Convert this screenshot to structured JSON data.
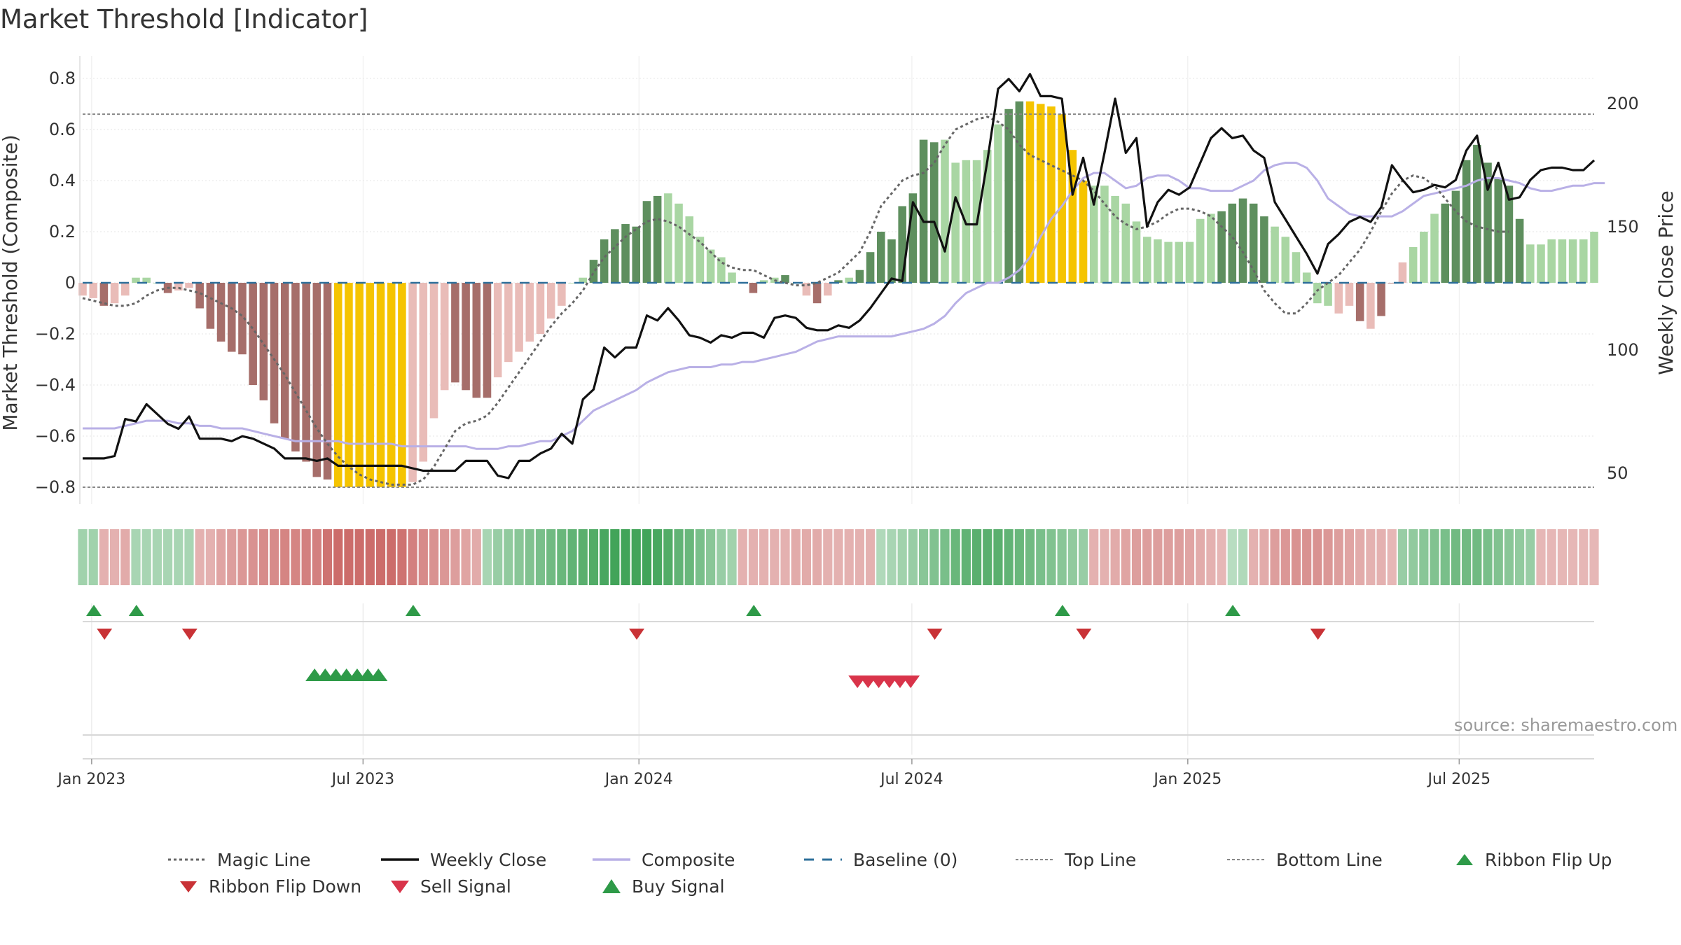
{
  "title": "Market Threshold [Indicator]",
  "source": "source: sharemaestro.com",
  "colors": {
    "weekly_close": "#111111",
    "composite": "#b9b0e6",
    "magic_line": "#666666",
    "baseline": "#2d6f9a",
    "threshold_lines": "#888888",
    "bar_strong_pos": "#5e8f5e",
    "bar_weak_pos": "#a9d6a3",
    "bar_strong_neg": "#a66e6a",
    "bar_weak_neg": "#e9bcb8",
    "bar_extreme": "#f5c400",
    "buy_marker": "#2e9a48",
    "sell_marker": "#d9344a",
    "flip_up": "#2e9a48",
    "flip_down": "#c93236"
  },
  "chart_data": {
    "type": "bar+line",
    "left_axis": {
      "label": "Market Threshold (Composite)",
      "ylim": [
        -0.88,
        0.88
      ],
      "ticks": [
        -0.8,
        -0.6,
        -0.4,
        -0.2,
        0,
        0.2,
        0.4,
        0.6,
        0.8
      ],
      "tick_labels": [
        "−0.8",
        "−0.6",
        "−0.4",
        "−0.2",
        "0",
        "0.2",
        "0.4",
        "0.6",
        "0.8"
      ]
    },
    "right_axis": {
      "label": "Weekly Close Price",
      "ticks": [
        50,
        100,
        150,
        200
      ],
      "tick_labels": [
        "50",
        "100",
        "150",
        "200"
      ]
    },
    "x_axis": {
      "start": "2022-12-26",
      "end": "2025-09-29",
      "ticks": [
        "2023-01-01",
        "2023-07-01",
        "2024-01-01",
        "2024-07-01",
        "2025-01-01",
        "2025-07-01"
      ],
      "tick_labels": [
        "Jan 2023",
        "Jul 2023",
        "Jan 2024",
        "Jul 2024",
        "Jan 2025",
        "Jul 2025"
      ]
    },
    "top_line": 0.66,
    "bottom_line": -0.8,
    "composite_bars": [
      -0.05,
      -0.06,
      -0.09,
      -0.08,
      -0.05,
      0.02,
      0.02,
      0.0,
      -0.04,
      -0.03,
      -0.02,
      -0.1,
      -0.18,
      -0.23,
      -0.27,
      -0.28,
      -0.4,
      -0.46,
      -0.55,
      -0.61,
      -0.66,
      -0.7,
      -0.76,
      -0.77,
      -0.8,
      -0.8,
      -0.8,
      -0.8,
      -0.8,
      -0.8,
      -0.8,
      -0.78,
      -0.7,
      -0.53,
      -0.42,
      -0.39,
      -0.42,
      -0.45,
      -0.45,
      -0.37,
      -0.31,
      -0.27,
      -0.23,
      -0.2,
      -0.14,
      -0.09,
      0.0,
      0.02,
      0.09,
      0.17,
      0.21,
      0.23,
      0.22,
      0.32,
      0.34,
      0.35,
      0.31,
      0.26,
      0.18,
      0.13,
      0.1,
      0.04,
      0.0,
      -0.04,
      0.01,
      0.02,
      0.03,
      0.0,
      -0.05,
      -0.08,
      -0.05,
      0.01,
      0.02,
      0.05,
      0.12,
      0.2,
      0.17,
      0.3,
      0.35,
      0.56,
      0.55,
      0.56,
      0.47,
      0.48,
      0.48,
      0.52,
      0.62,
      0.68,
      0.71,
      0.71,
      0.7,
      0.69,
      0.66,
      0.52,
      0.4,
      0.38,
      0.38,
      0.34,
      0.31,
      0.24,
      0.18,
      0.17,
      0.16,
      0.16,
      0.16,
      0.25,
      0.27,
      0.28,
      0.31,
      0.33,
      0.31,
      0.26,
      0.22,
      0.18,
      0.12,
      0.04,
      -0.08,
      -0.09,
      -0.12,
      -0.09,
      -0.15,
      -0.18,
      -0.13,
      0.0,
      0.08,
      0.14,
      0.2,
      0.27,
      0.31,
      0.36,
      0.48,
      0.54,
      0.47,
      0.41,
      0.38,
      0.25,
      0.15,
      0.15,
      0.17,
      0.17,
      0.17,
      0.17,
      0.2
    ],
    "bar_style": [
      "wn",
      "wn",
      "sn",
      "wn",
      "wn",
      "wp",
      "wp",
      "wp",
      "sn",
      "wn",
      "wn",
      "sn",
      "sn",
      "sn",
      "sn",
      "sn",
      "sn",
      "sn",
      "sn",
      "sn",
      "sn",
      "sn",
      "sn",
      "sn",
      "x",
      "x",
      "x",
      "x",
      "x",
      "x",
      "x",
      "wn",
      "wn",
      "wn",
      "wn",
      "sn",
      "sn",
      "sn",
      "sn",
      "wn",
      "wn",
      "wn",
      "wn",
      "wn",
      "wn",
      "wn",
      "wp",
      "wp",
      "sp",
      "sp",
      "sp",
      "sp",
      "sp",
      "sp",
      "sp",
      "wp",
      "wp",
      "wp",
      "wp",
      "wp",
      "wp",
      "wp",
      "wp",
      "sn",
      "wp",
      "wp",
      "sp",
      "wp",
      "wn",
      "sn",
      "wn",
      "sp",
      "wp",
      "sp",
      "sp",
      "sp",
      "sp",
      "sp",
      "sp",
      "sp",
      "sp",
      "wp",
      "wp",
      "wp",
      "wp",
      "wp",
      "wp",
      "sp",
      "sp",
      "x",
      "x",
      "x",
      "x",
      "x",
      "x",
      "wp",
      "wp",
      "wp",
      "wp",
      "wp",
      "wp",
      "wp",
      "wp",
      "wp",
      "wp",
      "wp",
      "wp",
      "sp",
      "sp",
      "sp",
      "sp",
      "sp",
      "wp",
      "wp",
      "wp",
      "wp",
      "wp",
      "wp",
      "wn",
      "wn",
      "sn",
      "wn",
      "sn",
      "sn",
      "wn",
      "wp",
      "wp",
      "wp",
      "sp",
      "sp",
      "sp",
      "sp",
      "sp",
      "sp",
      "sp",
      "sp",
      "wp",
      "wp",
      "wp",
      "wp",
      "wp",
      "wp",
      "wp",
      "wp",
      "sp"
    ],
    "weekly_close": [
      56.0,
      56.0,
      56.0,
      57.0,
      72.0,
      71.0,
      78.0,
      74.0,
      70.0,
      68.0,
      73.0,
      64.0,
      64.0,
      64.0,
      63.0,
      65.0,
      64.0,
      62.0,
      60.0,
      56.0,
      56.0,
      56.0,
      55.0,
      56.0,
      53.0,
      53.0,
      53.0,
      53.0,
      53.0,
      53.0,
      53.0,
      52.0,
      51.0,
      51.0,
      51.0,
      51.0,
      55.0,
      55.0,
      55.0,
      49.0,
      48.0,
      55.0,
      55.0,
      58.0,
      60.0,
      66.0,
      62.0,
      80.0,
      84.0,
      101.0,
      97.0,
      101.0,
      101.0,
      114.0,
      112.0,
      117.0,
      112.0,
      106.0,
      105.0,
      103.0,
      106.0,
      105.0,
      107.0,
      107.0,
      105.0,
      113.0,
      114.0,
      113.0,
      109.0,
      108.0,
      108.0,
      110.0,
      109.0,
      112.0,
      117.0,
      123.0,
      129.0,
      128.0,
      160.0,
      152.0,
      152.0,
      140.0,
      162.0,
      151.0,
      151.0,
      177.0,
      206.0,
      210.0,
      205.0,
      212.0,
      203.0,
      203.0,
      202.0,
      163.0,
      178.0,
      159.0,
      180.0,
      202.0,
      180.0,
      186.0,
      150.0,
      160.0,
      165.0,
      163.0,
      166.0,
      176.0,
      186.0,
      190.0,
      186.0,
      187.0,
      181.0,
      178.0,
      160.0,
      153.0,
      146.0,
      139.0,
      131.0,
      143.0,
      147.0,
      152.0,
      154.0,
      152.0,
      158.0,
      175.0,
      169.0,
      164.0,
      165.0,
      167.0,
      166.0,
      169.0,
      181.0,
      187.0,
      165.0,
      176.0,
      161.0,
      162.0,
      169.0,
      173.0,
      174.0,
      174.0,
      173.0,
      173.0,
      177.0
    ],
    "composite_line": [
      -0.57,
      -0.57,
      -0.57,
      -0.57,
      -0.56,
      -0.55,
      -0.54,
      -0.54,
      -0.54,
      -0.55,
      -0.55,
      -0.56,
      -0.56,
      -0.57,
      -0.57,
      -0.57,
      -0.58,
      -0.59,
      -0.6,
      -0.61,
      -0.62,
      -0.62,
      -0.62,
      -0.62,
      -0.62,
      -0.63,
      -0.63,
      -0.63,
      -0.63,
      -0.63,
      -0.64,
      -0.64,
      -0.64,
      -0.64,
      -0.64,
      -0.64,
      -0.64,
      -0.65,
      -0.65,
      -0.65,
      -0.64,
      -0.64,
      -0.63,
      -0.62,
      -0.62,
      -0.6,
      -0.58,
      -0.54,
      -0.5,
      -0.48,
      -0.46,
      -0.44,
      -0.42,
      -0.39,
      -0.37,
      -0.35,
      -0.34,
      -0.33,
      -0.33,
      -0.33,
      -0.32,
      -0.32,
      -0.31,
      -0.31,
      -0.3,
      -0.29,
      -0.28,
      -0.27,
      -0.25,
      -0.23,
      -0.22,
      -0.21,
      -0.21,
      -0.21,
      -0.21,
      -0.21,
      -0.21,
      -0.2,
      -0.19,
      -0.18,
      -0.16,
      -0.13,
      -0.08,
      -0.04,
      -0.02,
      -0.0,
      0.0,
      0.02,
      0.05,
      0.1,
      0.18,
      0.25,
      0.3,
      0.36,
      0.41,
      0.43,
      0.43,
      0.4,
      0.37,
      0.38,
      0.41,
      0.42,
      0.42,
      0.4,
      0.37,
      0.37,
      0.36,
      0.36,
      0.36,
      0.38,
      0.4,
      0.44,
      0.46,
      0.47,
      0.47,
      0.45,
      0.4,
      0.33,
      0.3,
      0.27,
      0.26,
      0.26,
      0.26,
      0.26,
      0.28,
      0.31,
      0.34,
      0.35,
      0.36,
      0.37,
      0.38,
      0.4,
      0.41,
      0.41,
      0.4,
      0.39,
      0.37,
      0.36,
      0.36,
      0.37,
      0.38,
      0.38,
      0.39,
      0.39
    ],
    "magic_line": [
      -0.06,
      -0.07,
      -0.08,
      -0.09,
      -0.09,
      -0.08,
      -0.05,
      -0.03,
      -0.02,
      -0.02,
      -0.03,
      -0.04,
      -0.06,
      -0.08,
      -0.1,
      -0.13,
      -0.18,
      -0.24,
      -0.3,
      -0.36,
      -0.43,
      -0.5,
      -0.57,
      -0.63,
      -0.68,
      -0.72,
      -0.75,
      -0.77,
      -0.78,
      -0.79,
      -0.79,
      -0.79,
      -0.77,
      -0.72,
      -0.65,
      -0.58,
      -0.55,
      -0.54,
      -0.52,
      -0.47,
      -0.41,
      -0.35,
      -0.29,
      -0.23,
      -0.17,
      -0.12,
      -0.08,
      -0.03,
      0.04,
      0.1,
      0.14,
      0.18,
      0.21,
      0.24,
      0.25,
      0.24,
      0.22,
      0.19,
      0.16,
      0.12,
      0.08,
      0.06,
      0.05,
      0.05,
      0.03,
      0.01,
      0.0,
      -0.01,
      -0.01,
      -0.0,
      0.02,
      0.04,
      0.08,
      0.12,
      0.2,
      0.3,
      0.35,
      0.4,
      0.42,
      0.43,
      0.47,
      0.54,
      0.6,
      0.62,
      0.64,
      0.65,
      0.63,
      0.6,
      0.54,
      0.5,
      0.48,
      0.46,
      0.44,
      0.42,
      0.4,
      0.36,
      0.31,
      0.26,
      0.23,
      0.21,
      0.22,
      0.24,
      0.27,
      0.29,
      0.29,
      0.28,
      0.26,
      0.22,
      0.18,
      0.12,
      0.05,
      -0.03,
      -0.08,
      -0.12,
      -0.12,
      -0.08,
      -0.03,
      0.0,
      0.03,
      0.08,
      0.13,
      0.2,
      0.28,
      0.35,
      0.4,
      0.42,
      0.41,
      0.38,
      0.33,
      0.28,
      0.24,
      0.22,
      0.21,
      0.2,
      0.2
    ],
    "ribbon": [
      0.35,
      0.35,
      -0.3,
      -0.3,
      -0.35,
      0.3,
      0.3,
      0.3,
      0.3,
      0.3,
      0.3,
      -0.3,
      -0.3,
      -0.4,
      -0.45,
      -0.5,
      -0.55,
      -0.6,
      -0.6,
      -0.65,
      -0.65,
      -0.7,
      -0.7,
      -0.8,
      -0.85,
      -0.85,
      -0.85,
      -0.85,
      -0.85,
      -0.85,
      -0.8,
      -0.7,
      -0.6,
      -0.55,
      -0.5,
      -0.45,
      -0.4,
      -0.35,
      0.3,
      0.4,
      0.45,
      0.5,
      0.55,
      0.6,
      0.65,
      0.7,
      0.75,
      0.8,
      0.85,
      0.9,
      0.95,
      0.95,
      0.95,
      0.95,
      0.9,
      0.85,
      0.75,
      0.7,
      0.6,
      0.5,
      0.4,
      0.35,
      -0.3,
      -0.3,
      -0.3,
      -0.3,
      -0.3,
      -0.35,
      -0.35,
      -0.35,
      -0.3,
      -0.3,
      -0.3,
      -0.3,
      -0.3,
      0.25,
      0.3,
      0.35,
      0.4,
      0.5,
      0.55,
      0.6,
      0.7,
      0.75,
      0.8,
      0.8,
      0.8,
      0.75,
      0.7,
      0.65,
      0.6,
      0.55,
      0.5,
      0.45,
      0.4,
      -0.3,
      -0.3,
      -0.35,
      -0.4,
      -0.45,
      -0.45,
      -0.45,
      -0.45,
      -0.45,
      -0.4,
      -0.35,
      -0.3,
      -0.25,
      0.2,
      0.25,
      -0.3,
      -0.35,
      -0.45,
      -0.5,
      -0.55,
      -0.55,
      -0.55,
      -0.5,
      -0.45,
      -0.4,
      -0.35,
      -0.3,
      -0.3,
      -0.25,
      0.4,
      0.45,
      0.5,
      0.55,
      0.6,
      0.65,
      0.65,
      0.65,
      0.6,
      0.55,
      0.5,
      0.45,
      0.4,
      -0.25,
      -0.25,
      -0.25,
      -0.25,
      -0.25,
      -0.25
    ],
    "flip_up_weeks": [
      0,
      4,
      30,
      62,
      91,
      107
    ],
    "flip_down_weeks": [
      1,
      9,
      51,
      79,
      93,
      115
    ],
    "buy_signal_weeks": [
      21,
      22,
      23,
      24,
      25,
      26,
      27
    ],
    "sell_signal_weeks": [
      72,
      73,
      74,
      75,
      76,
      77
    ]
  },
  "legend": [
    {
      "label": "Magic Line"
    },
    {
      "label": "Weekly Close"
    },
    {
      "label": "Composite"
    },
    {
      "label": "Baseline (0)"
    },
    {
      "label": "Top Line"
    },
    {
      "label": "Bottom Line"
    },
    {
      "label": "Ribbon Flip Up"
    },
    {
      "label": "Ribbon Flip Down"
    },
    {
      "label": "Sell Signal"
    },
    {
      "label": "Buy Signal"
    }
  ]
}
